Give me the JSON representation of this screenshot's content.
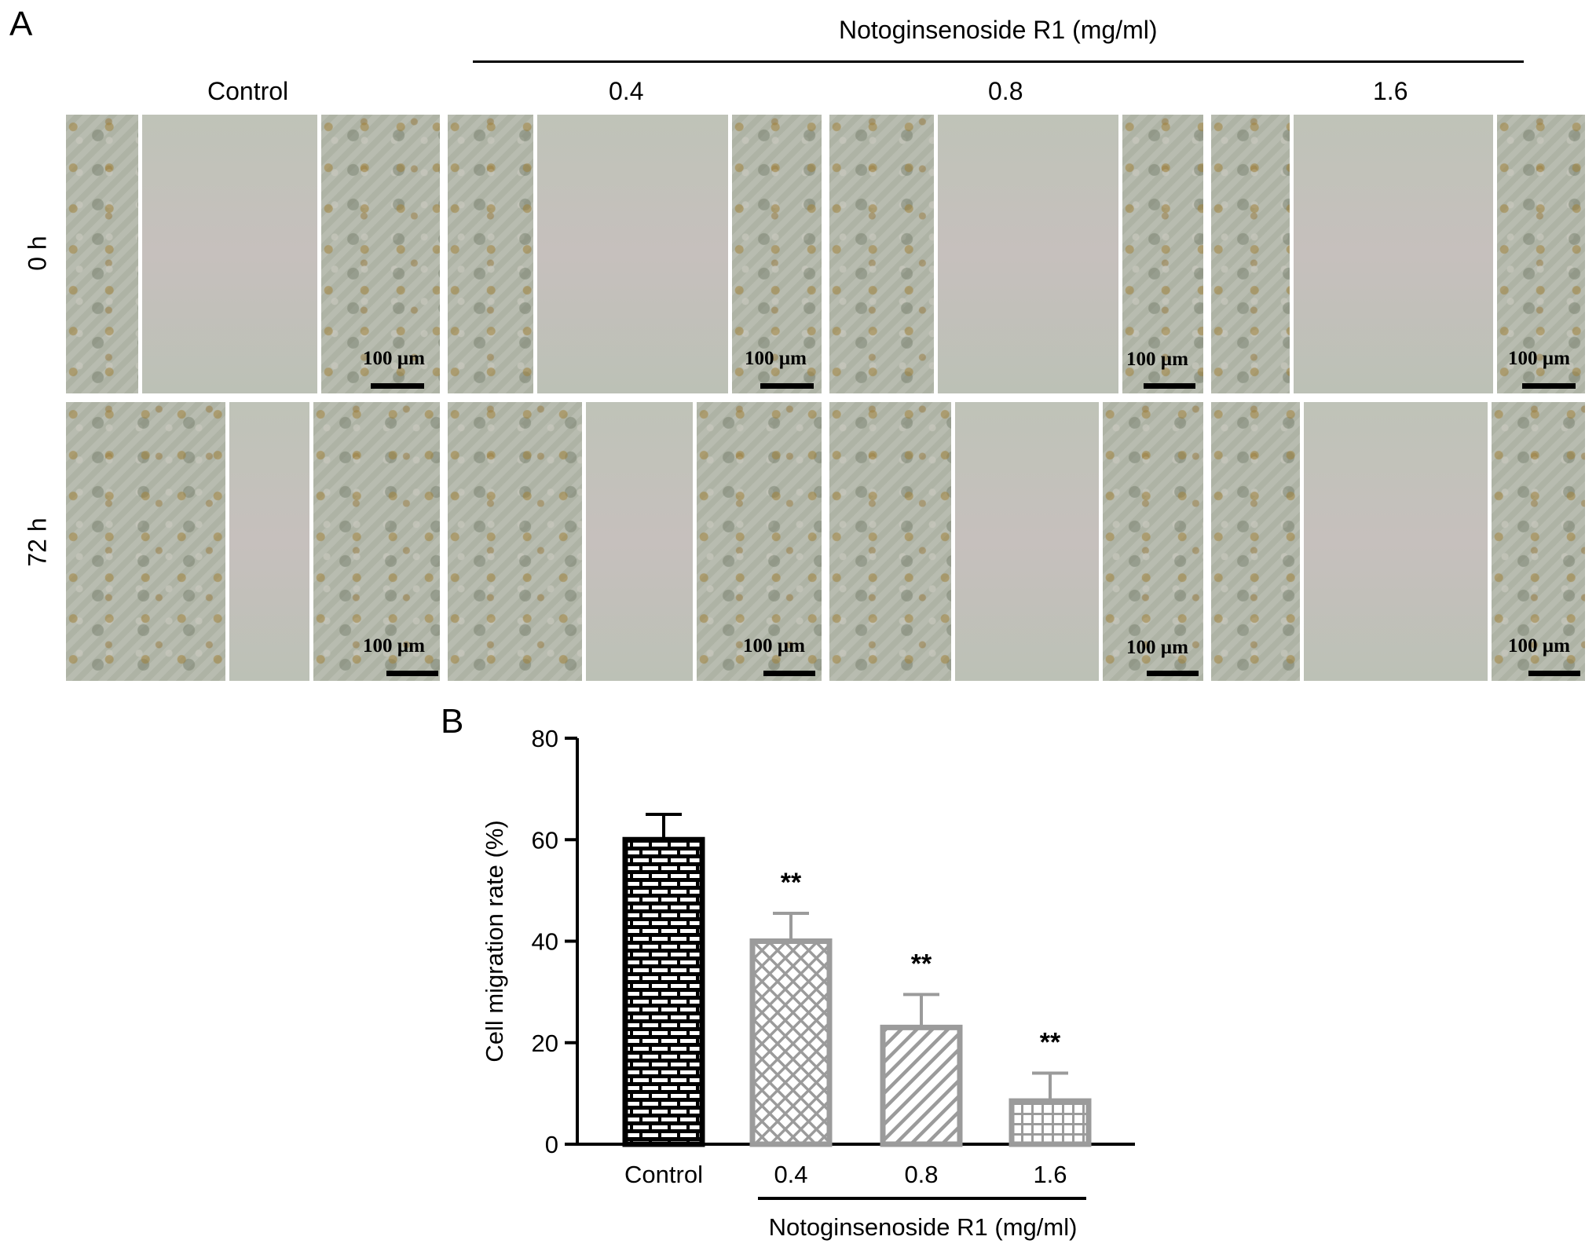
{
  "panel_a": {
    "letter": "A",
    "treatment_header": "Notoginsenoside R1 (mg/ml)",
    "columns": [
      "Control",
      "0.4",
      "0.8",
      "1.6"
    ],
    "rows": [
      "0 h",
      "72 h"
    ],
    "scale_bar_label": "100 µm"
  },
  "panel_b": {
    "letter": "B"
  },
  "chart_data": {
    "type": "bar",
    "categories": [
      "Control",
      "0.4",
      "0.8",
      "1.6"
    ],
    "values": [
      60,
      40,
      23,
      8.5
    ],
    "errors": [
      5,
      5.5,
      6.5,
      5.5
    ],
    "significance": [
      "",
      "**",
      "**",
      "**"
    ],
    "ylabel": "Cell migration rate (%)",
    "xlabel": "Notoginsenoside R1 (mg/ml)",
    "ylim": [
      0,
      80
    ],
    "yticks": [
      0,
      20,
      40,
      60,
      80
    ],
    "grid": false,
    "bar_fills": [
      "black-brick",
      "grey-crosshatch",
      "grey-diagonal",
      "grey-grid"
    ],
    "colors": {
      "black": "#000000",
      "grey": "#9b9b9b"
    }
  }
}
